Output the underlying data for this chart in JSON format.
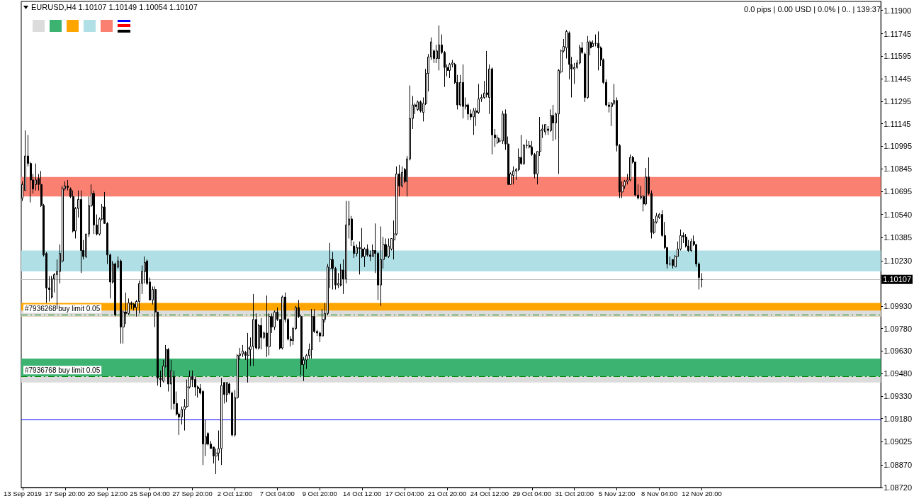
{
  "chart_data": {
    "type": "candlestick",
    "title": "EURUSD,H4 1.10107 1.10149 1.10054 1.10107",
    "annotations": [
      "0.0 pips | 0.00 USD | 0.0% | 0.. | 139:37"
    ],
    "color": "#000000",
    "categories": [
      "13 Sep 2019",
      null,
      null,
      null,
      null,
      null,
      null,
      null,
      null,
      null,
      null,
      null,
      null,
      null,
      null,
      null,
      "17 Sep 20:00",
      null,
      null,
      null,
      null,
      null,
      null,
      null,
      null,
      null,
      null,
      null,
      null,
      null,
      null,
      null,
      "20 Sep 12:00",
      null,
      null,
      null,
      null,
      null,
      null,
      null,
      null,
      null,
      null,
      null,
      null,
      null,
      null,
      null,
      "25 Sep 04:00",
      null,
      null,
      null,
      null,
      null,
      null,
      null,
      null,
      null,
      null,
      null,
      null,
      null,
      null,
      null,
      "27 Sep 20:00",
      null,
      null,
      null,
      null,
      null,
      null,
      null,
      null,
      null,
      null,
      null,
      null,
      null,
      null,
      null,
      "2 Oct 12:00",
      null,
      null,
      null,
      null,
      null,
      null,
      null,
      null,
      null,
      null,
      null,
      null,
      null,
      null,
      null,
      "7 Oct 04:00",
      null,
      null,
      null,
      null,
      null,
      null,
      null,
      null,
      null,
      null,
      null,
      null,
      null,
      null,
      null,
      "9 Oct 20:00",
      null,
      null,
      null,
      null,
      null,
      null,
      null,
      null,
      null,
      null,
      null,
      null,
      null,
      null,
      null,
      "14 Oct 12:00",
      null,
      null,
      null,
      null,
      null,
      null,
      null,
      null,
      null,
      null,
      null,
      null,
      null,
      null,
      null,
      "17 Oct 04:00",
      null,
      null,
      null,
      null,
      null,
      null,
      null,
      null,
      null,
      null,
      null,
      null,
      null,
      null,
      null,
      "21 Oct 20:00",
      null,
      null,
      null,
      null,
      null,
      null,
      null,
      null,
      null,
      null,
      null,
      null,
      null,
      null,
      null,
      "24 Oct 12:00",
      null,
      null,
      null,
      null,
      null,
      null,
      null,
      null,
      null,
      null,
      null,
      null,
      null,
      null,
      null,
      "29 Oct 04:00",
      null,
      null,
      null,
      null,
      null,
      null,
      null,
      null,
      null,
      null,
      null,
      null,
      null,
      null,
      null,
      "31 Oct 20:00",
      null,
      null,
      null,
      null,
      null,
      null,
      null,
      null,
      null,
      null,
      null,
      null,
      null,
      null,
      null,
      "5 Nov 12:00",
      null,
      null,
      null,
      null,
      null,
      null,
      null,
      null,
      null,
      null,
      null,
      null,
      null,
      null,
      null,
      "8 Nov 04:00",
      null,
      null,
      null,
      null,
      null,
      null,
      null,
      null,
      null,
      null,
      null,
      null,
      null,
      null,
      null,
      "12 Nov 20:00",
      null,
      null,
      null,
      null,
      null,
      null,
      null,
      null,
      null,
      null,
      null,
      null,
      null,
      null,
      null,
      null,
      null,
      null,
      null,
      null,
      null,
      null,
      null,
      null,
      null,
      null,
      null,
      null,
      null,
      null,
      null,
      null,
      null,
      null,
      null,
      null,
      null,
      null,
      null,
      null,
      null,
      null,
      null,
      null,
      null,
      null,
      null,
      null,
      null,
      null,
      null,
      null,
      null,
      null,
      null,
      null,
      null,
      null,
      null,
      null,
      null,
      null,
      null,
      null,
      null,
      null,
      null
    ],
    "ohlc": [
      [
        1.1065,
        1.1076,
        1.1063,
        1.1074
      ],
      [
        1.107,
        1.111,
        1.107,
        1.1093
      ],
      [
        1.1093,
        1.1107,
        1.1086,
        1.1088
      ],
      [
        1.1088,
        1.1089,
        1.1062,
        1.1077
      ],
      [
        1.1077,
        1.1081,
        1.1068,
        1.1071
      ],
      [
        1.1074,
        1.1088,
        1.107,
        1.1077
      ],
      [
        1.1078,
        1.1081,
        1.107,
        1.1074
      ],
      [
        1.1074,
        1.1083,
        1.1059,
        1.106
      ],
      [
        1.106,
        1.1061,
        1.1026,
        1.1027
      ],
      [
        1.1028,
        1.1029,
        1.0995,
        1.1005
      ],
      [
        1.1005,
        1.1013,
        1.0996,
        1.1004
      ],
      [
        1.0999,
        1.1013,
        1.0998,
        1.1011
      ],
      [
        1.1011,
        1.1015,
        1.1002,
        1.1014
      ],
      [
        1.1014,
        1.1024,
        1.0991,
        1.1016
      ],
      [
        1.1016,
        1.1034,
        1.1008,
        1.1028
      ],
      [
        1.1023,
        1.1073,
        1.1022,
        1.1071
      ],
      [
        1.1071,
        1.1076,
        1.107,
        1.1073
      ],
      [
        1.1073,
        1.1077,
        1.107,
        1.1072
      ],
      [
        1.1071,
        1.1072,
        1.1065,
        1.1066
      ],
      [
        1.1066,
        1.107,
        1.1042,
        1.1043
      ],
      [
        1.1043,
        1.1059,
        1.1038,
        1.1058
      ],
      [
        1.1058,
        1.107,
        1.1052,
        1.1064
      ],
      [
        1.1064,
        1.107,
        1.1015,
        1.103
      ],
      [
        1.103,
        1.1037,
        1.1024,
        1.1026
      ],
      [
        1.1026,
        1.1041,
        1.1025,
        1.1041
      ],
      [
        1.1041,
        1.1066,
        1.1039,
        1.106
      ],
      [
        1.106,
        1.1074,
        1.1059,
        1.1068
      ],
      [
        1.1068,
        1.107,
        1.1041,
        1.1047
      ],
      [
        1.1047,
        1.1054,
        1.104,
        1.1041
      ],
      [
        1.1041,
        1.1052,
        1.104,
        1.1051
      ],
      [
        1.1051,
        1.1061,
        1.105,
        1.1059
      ],
      [
        1.1059,
        1.1069,
        1.1048,
        1.1048
      ],
      [
        1.1048,
        1.1049,
        1.1021,
        1.1027
      ],
      [
        1.1027,
        1.1028,
        1.0998,
        1.1009
      ],
      [
        1.1009,
        1.1023,
        1.1008,
        1.1021
      ],
      [
        1.1021,
        1.1022,
        1.0986,
        1.0987
      ],
      [
        1.1019,
        1.1026,
        1.1018,
        1.1023
      ],
      [
        1.1023,
        1.1024,
        1.0968,
        1.0979
      ],
      [
        1.0979,
        1.099,
        1.0968,
        1.0989
      ],
      [
        1.0989,
        1.1002,
        1.0981,
        1.0988
      ],
      [
        1.0988,
        1.0998,
        1.0987,
        1.0995
      ],
      [
        1.0995,
        1.0996,
        1.0991,
        1.0994
      ],
      [
        1.0994,
        1.0995,
        1.099,
        1.0992
      ],
      [
        1.0992,
        1.0997,
        1.0986,
        1.0996
      ],
      [
        1.0996,
        1.101,
        1.0988,
        1.1008
      ],
      [
        1.1008,
        1.102,
        1.1001,
        1.1016
      ],
      [
        1.1016,
        1.1026,
        1.1008,
        1.1022
      ],
      [
        1.1023,
        1.1024,
        1.1007,
        1.1008
      ],
      [
        1.1009,
        1.1012,
        1.0997,
        1.0997
      ],
      [
        1.0997,
        1.1006,
        1.0994,
        1.1004
      ],
      [
        1.1004,
        1.1006,
        1.0979,
        1.0989
      ],
      [
        1.0989,
        1.0989,
        1.094,
        1.0945
      ],
      [
        1.0945,
        1.095,
        1.0939,
        1.0944
      ],
      [
        1.0943,
        1.0957,
        1.0942,
        1.0953
      ],
      [
        1.0953,
        1.0967,
        1.0952,
        1.0964
      ],
      [
        1.0964,
        1.0965,
        1.0936,
        1.0941
      ],
      [
        1.0941,
        1.0957,
        1.0924,
        1.095
      ],
      [
        1.0946,
        1.095,
        1.0924,
        1.0928
      ],
      [
        1.0928,
        1.0936,
        1.092,
        1.0921
      ],
      [
        1.0921,
        1.0922,
        1.0907,
        1.0919
      ],
      [
        1.0919,
        1.0926,
        1.0914,
        1.0924
      ],
      [
        1.0924,
        1.0931,
        1.091,
        1.0926
      ],
      [
        1.0926,
        1.0944,
        1.0925,
        1.0939
      ],
      [
        1.0939,
        1.095,
        1.0938,
        1.0946
      ],
      [
        1.0946,
        1.095,
        1.0939,
        1.0944
      ],
      [
        1.0944,
        1.0946,
        1.0933,
        1.0939
      ],
      [
        1.0939,
        1.094,
        1.0932,
        1.0938
      ],
      [
        1.0938,
        1.0941,
        1.0934,
        1.0935
      ],
      [
        1.0936,
        1.0937,
        1.0887,
        1.0901
      ],
      [
        1.0901,
        1.0917,
        1.0893,
        1.0906
      ],
      [
        1.0908,
        1.0909,
        1.09,
        1.0901
      ],
      [
        1.0901,
        1.0903,
        1.0898,
        1.0898
      ],
      [
        1.0899,
        1.0899,
        1.0888,
        1.0893
      ],
      [
        1.0893,
        1.0898,
        1.0881,
        1.0895
      ],
      [
        1.0895,
        1.091,
        1.089,
        1.0898
      ],
      [
        1.0898,
        1.0945,
        1.0887,
        1.094
      ],
      [
        1.0942,
        1.0942,
        1.0928,
        1.0934
      ],
      [
        1.0934,
        1.0942,
        1.0929,
        1.0942
      ],
      [
        1.0941,
        1.0942,
        1.0934,
        1.0935
      ],
      [
        1.0935,
        1.0936,
        1.0906,
        1.0907
      ],
      [
        1.0907,
        1.0937,
        1.0906,
        1.0932
      ],
      [
        1.0932,
        1.0961,
        1.0931,
        1.096
      ],
      [
        1.096,
        1.0965,
        1.0957,
        1.0961
      ],
      [
        1.0961,
        1.0967,
        1.0959,
        1.0963
      ],
      [
        1.0962,
        1.0963,
        1.0957,
        1.096
      ],
      [
        1.096,
        1.0975,
        1.0942,
        1.0965
      ],
      [
        1.0964,
        1.0972,
        1.0953,
        1.0966
      ],
      [
        1.0966,
        1.1001,
        1.0953,
        1.0984
      ],
      [
        1.0984,
        1.0988,
        1.0964,
        1.0965
      ],
      [
        1.0965,
        1.0981,
        1.0964,
        1.098
      ],
      [
        1.098,
        1.0985,
        1.0964,
        1.0972
      ],
      [
        1.0972,
        1.0976,
        1.0971,
        1.0975
      ],
      [
        1.0975,
        1.1,
        1.0959,
        1.0966
      ],
      [
        1.0966,
        1.0988,
        1.096,
        1.0986
      ],
      [
        1.0986,
        1.0988,
        1.0975,
        1.0979
      ],
      [
        1.0979,
        1.099,
        1.0977,
        1.0989
      ],
      [
        1.0989,
        1.0992,
        1.0983,
        1.0984
      ],
      [
        1.0984,
        1.0984,
        1.0964,
        1.0965
      ],
      [
        1.0965,
        1.1,
        1.0964,
        1.0999
      ],
      [
        1.0999,
        1.1002,
        1.0982,
        1.0984
      ],
      [
        1.0984,
        1.0985,
        1.097,
        1.0971
      ],
      [
        1.0971,
        1.0973,
        1.0966,
        1.097
      ],
      [
        1.097,
        1.0979,
        1.0967,
        1.0978
      ],
      [
        1.0978,
        1.0993,
        1.0977,
        1.0992
      ],
      [
        1.0992,
        1.0997,
        1.0985,
        1.0986
      ],
      [
        1.0986,
        1.0987,
        1.0947,
        1.0954
      ],
      [
        1.0954,
        1.0959,
        1.0943,
        1.0957
      ],
      [
        1.0957,
        1.0961,
        1.0951,
        1.096
      ],
      [
        1.096,
        1.0968,
        1.0958,
        1.0964
      ],
      [
        1.0964,
        1.0991,
        1.0958,
        1.0986
      ],
      [
        1.0986,
        1.0991,
        1.0975,
        1.0976
      ],
      [
        1.0976,
        1.0977,
        1.0973,
        1.0975
      ],
      [
        1.0975,
        1.0976,
        1.0969,
        1.0973
      ],
      [
        1.0973,
        1.0991,
        1.0973,
        1.0984
      ],
      [
        1.0984,
        1.0995,
        1.0982,
        1.0988
      ],
      [
        1.0988,
        1.1021,
        1.0987,
        1.1019
      ],
      [
        1.1018,
        1.1035,
        1.1005,
        1.1024
      ],
      [
        1.1024,
        1.1029,
        1.1004,
        1.1018
      ],
      [
        1.1018,
        1.1019,
        1.1004,
        1.1007
      ],
      [
        1.1007,
        1.1015,
        1.1005,
        1.1008
      ],
      [
        1.1007,
        1.1021,
        1.1006,
        1.1017
      ],
      [
        1.1017,
        1.1024,
        1.1001,
        1.1011
      ],
      [
        1.1011,
        1.1063,
        1.1008,
        1.1047
      ],
      [
        1.1047,
        1.1063,
        1.1038,
        1.1051
      ],
      [
        1.1051,
        1.1053,
        1.1033,
        1.1037
      ],
      [
        1.1033,
        1.1036,
        1.1025,
        1.1028
      ],
      [
        1.1028,
        1.1034,
        1.1026,
        1.1032
      ],
      [
        1.1032,
        1.1036,
        1.1014,
        1.1031
      ],
      [
        1.1031,
        1.1045,
        1.1025,
        1.1026
      ],
      [
        1.1026,
        1.1032,
        1.1019,
        1.1031
      ],
      [
        1.1031,
        1.1034,
        1.1026,
        1.1027
      ],
      [
        1.1027,
        1.103,
        1.1023,
        1.1026
      ],
      [
        1.1026,
        1.1034,
        1.1026,
        1.103
      ],
      [
        1.103,
        1.1048,
        1.1015,
        1.1028
      ],
      [
        1.1028,
        1.1029,
        1.0997,
        1.1007
      ],
      [
        1.1007,
        1.1046,
        1.0993,
        1.1024
      ],
      [
        1.1024,
        1.1039,
        1.1018,
        1.1034
      ],
      [
        1.1034,
        1.1038,
        1.1026,
        1.1026
      ],
      [
        1.1026,
        1.1038,
        1.1025,
        1.1033
      ],
      [
        1.1031,
        1.1038,
        1.103,
        1.1038
      ],
      [
        1.1037,
        1.105,
        1.1024,
        1.1041
      ],
      [
        1.1041,
        1.1086,
        1.104,
        1.1081
      ],
      [
        1.1081,
        1.1087,
        1.1066,
        1.1073
      ],
      [
        1.1073,
        1.1086,
        1.1072,
        1.1082
      ],
      [
        1.1084,
        1.1085,
        1.1075,
        1.1076
      ],
      [
        1.1076,
        1.1093,
        1.1066,
        1.1091
      ],
      [
        1.1091,
        1.114,
        1.109,
        1.1118
      ],
      [
        1.1118,
        1.1133,
        1.1111,
        1.1127
      ],
      [
        1.1127,
        1.1128,
        1.1121,
        1.1126
      ],
      [
        1.1124,
        1.113,
        1.1123,
        1.1129
      ],
      [
        1.1129,
        1.113,
        1.1122,
        1.1123
      ],
      [
        1.1122,
        1.1132,
        1.1116,
        1.1128
      ],
      [
        1.1128,
        1.1151,
        1.1127,
        1.1148
      ],
      [
        1.1148,
        1.1161,
        1.1136,
        1.1159
      ],
      [
        1.1159,
        1.1172,
        1.1157,
        1.1169
      ],
      [
        1.1163,
        1.1164,
        1.1155,
        1.1158
      ],
      [
        1.1158,
        1.1167,
        1.1155,
        1.1163
      ],
      [
        1.1158,
        1.118,
        1.115,
        1.1167
      ],
      [
        1.1167,
        1.1174,
        1.1161,
        1.1162
      ],
      [
        1.1162,
        1.1163,
        1.1139,
        1.1152
      ],
      [
        1.1152,
        1.1154,
        1.1146,
        1.115
      ],
      [
        1.115,
        1.1155,
        1.1145,
        1.1154
      ],
      [
        1.1154,
        1.1157,
        1.1152,
        1.1155
      ],
      [
        1.1154,
        1.1155,
        1.1141,
        1.1142
      ],
      [
        1.1142,
        1.1147,
        1.1124,
        1.1127
      ],
      [
        1.1127,
        1.1147,
        1.1126,
        1.1142
      ],
      [
        1.1142,
        1.1154,
        1.1118,
        1.1126
      ],
      [
        1.1126,
        1.1132,
        1.1124,
        1.1127
      ],
      [
        1.1127,
        1.1128,
        1.1117,
        1.1121
      ],
      [
        1.1121,
        1.1124,
        1.1117,
        1.1119
      ],
      [
        1.1119,
        1.1125,
        1.1107,
        1.1123
      ],
      [
        1.1123,
        1.1125,
        1.1113,
        1.1122
      ],
      [
        1.1122,
        1.1141,
        1.1121,
        1.1131
      ],
      [
        1.1131,
        1.1134,
        1.1129,
        1.1132
      ],
      [
        1.1132,
        1.1143,
        1.1131,
        1.1135
      ],
      [
        1.1135,
        1.1163,
        1.1132,
        1.1134
      ],
      [
        1.1132,
        1.1154,
        1.1121,
        1.1151
      ],
      [
        1.1151,
        1.1152,
        1.1094,
        1.1107
      ],
      [
        1.1107,
        1.1111,
        1.1099,
        1.1105
      ],
      [
        1.1102,
        1.1107,
        1.1101,
        1.1105
      ],
      [
        1.1103,
        1.1105,
        1.1102,
        1.1103
      ],
      [
        1.1103,
        1.1123,
        1.1101,
        1.1121
      ],
      [
        1.1121,
        1.1124,
        1.1097,
        1.1101
      ],
      [
        1.1101,
        1.1106,
        1.1074,
        1.1074
      ],
      [
        1.1074,
        1.1082,
        1.1074,
        1.1081
      ],
      [
        1.108,
        1.1086,
        1.1074,
        1.1083
      ],
      [
        1.1083,
        1.1085,
        1.1077,
        1.1084
      ],
      [
        1.1084,
        1.1098,
        1.1083,
        1.1092
      ],
      [
        1.1092,
        1.1107,
        1.1087,
        1.1088
      ],
      [
        1.1088,
        1.1101,
        1.1087,
        1.11
      ],
      [
        1.11,
        1.1104,
        1.1098,
        1.11
      ],
      [
        1.11,
        1.1103,
        1.1098,
        1.1099
      ],
      [
        1.1099,
        1.1103,
        1.1093,
        1.1094
      ],
      [
        1.1094,
        1.1095,
        1.1078,
        1.1081
      ],
      [
        1.1081,
        1.1096,
        1.1074,
        1.1096
      ],
      [
        1.1096,
        1.1119,
        1.1093,
        1.111
      ],
      [
        1.111,
        1.1114,
        1.1105,
        1.1111
      ],
      [
        1.1109,
        1.1114,
        1.1107,
        1.1114
      ],
      [
        1.1111,
        1.1113,
        1.1107,
        1.111
      ],
      [
        1.111,
        1.1124,
        1.1109,
        1.112
      ],
      [
        1.112,
        1.1127,
        1.1103,
        1.1115
      ],
      [
        1.1115,
        1.1122,
        1.1104,
        1.1121
      ],
      [
        1.1121,
        1.1151,
        1.1081,
        1.115
      ],
      [
        1.1149,
        1.1164,
        1.1148,
        1.1163
      ],
      [
        1.1163,
        1.1171,
        1.1162,
        1.1166
      ],
      [
        1.1165,
        1.1177,
        1.1158,
        1.1176
      ],
      [
        1.1175,
        1.1176,
        1.1144,
        1.1154
      ],
      [
        1.1154,
        1.1159,
        1.1132,
        1.1151
      ],
      [
        1.1151,
        1.1155,
        1.1141,
        1.1152
      ],
      [
        1.1152,
        1.1157,
        1.1151,
        1.1155
      ],
      [
        1.1155,
        1.1167,
        1.1154,
        1.1165
      ],
      [
        1.1165,
        1.1169,
        1.1161,
        1.1162
      ],
      [
        1.1161,
        1.1162,
        1.1129,
        1.1132
      ],
      [
        1.1132,
        1.1173,
        1.1131,
        1.1169
      ],
      [
        1.1169,
        1.117,
        1.116,
        1.1165
      ],
      [
        1.1166,
        1.117,
        1.1166,
        1.1168
      ],
      [
        1.1168,
        1.1174,
        1.1166,
        1.1168
      ],
      [
        1.1168,
        1.1176,
        1.115,
        1.1165
      ],
      [
        1.1165,
        1.1166,
        1.1153,
        1.1157
      ],
      [
        1.1157,
        1.1158,
        1.1141,
        1.1142
      ],
      [
        1.1142,
        1.1144,
        1.1126,
        1.1127
      ],
      [
        1.1127,
        1.1129,
        1.1122,
        1.1126
      ],
      [
        1.1126,
        1.1129,
        1.1113,
        1.1128
      ],
      [
        1.1128,
        1.1141,
        1.1127,
        1.113
      ],
      [
        1.113,
        1.1132,
        1.1096,
        1.11
      ],
      [
        1.11,
        1.1101,
        1.1065,
        1.1069
      ],
      [
        1.1069,
        1.1076,
        1.1065,
        1.1073
      ],
      [
        1.1073,
        1.1077,
        1.1071,
        1.1076
      ],
      [
        1.1076,
        1.1081,
        1.1074,
        1.1077
      ],
      [
        1.1077,
        1.1094,
        1.1076,
        1.1092
      ],
      [
        1.1092,
        1.1093,
        1.1088,
        1.1089
      ],
      [
        1.1089,
        1.1089,
        1.1066,
        1.1067
      ],
      [
        1.1067,
        1.1074,
        1.1064,
        1.1065
      ],
      [
        1.1065,
        1.1073,
        1.1064,
        1.1066
      ],
      [
        1.1066,
        1.1067,
        1.1056,
        1.1061
      ],
      [
        1.1061,
        1.1085,
        1.106,
        1.1079
      ],
      [
        1.1079,
        1.1092,
        1.1067,
        1.1068
      ],
      [
        1.1068,
        1.107,
        1.1038,
        1.1042
      ],
      [
        1.1042,
        1.1051,
        1.1041,
        1.1049
      ],
      [
        1.1049,
        1.1055,
        1.1048,
        1.1053
      ],
      [
        1.1052,
        1.1055,
        1.1051,
        1.1054
      ],
      [
        1.1054,
        1.1057,
        1.1039,
        1.104
      ],
      [
        1.104,
        1.1049,
        1.1031,
        1.1032
      ],
      [
        1.1032,
        1.1032,
        1.1018,
        1.1021
      ],
      [
        1.1021,
        1.1026,
        1.102,
        1.1021
      ],
      [
        1.1024,
        1.1024,
        1.1018,
        1.102
      ],
      [
        1.1019,
        1.1027,
        1.1019,
        1.1026
      ],
      [
        1.1026,
        1.1036,
        1.1026,
        1.1031
      ],
      [
        1.1031,
        1.1044,
        1.103,
        1.104
      ],
      [
        1.104,
        1.1042,
        1.1035,
        1.1039
      ],
      [
        1.1039,
        1.1041,
        1.1032,
        1.1033
      ],
      [
        1.1033,
        1.1037,
        1.1029,
        1.103
      ],
      [
        1.103,
        1.1038,
        1.1029,
        1.1036
      ],
      [
        1.1036,
        1.104,
        1.1033,
        1.1034
      ],
      [
        1.1034,
        1.1034,
        1.1019,
        1.1021
      ],
      [
        1.1021,
        1.1022,
        1.1004,
        1.1012
      ],
      [
        1.10107,
        1.10149,
        1.10054,
        1.10107
      ],
      null,
      null,
      null,
      null,
      null,
      null,
      null,
      null,
      null,
      null,
      null,
      null,
      null,
      null,
      null,
      null,
      null,
      null,
      null,
      null,
      null,
      null,
      null,
      null,
      null,
      null,
      null,
      null,
      null,
      null,
      null,
      null,
      null,
      null,
      null,
      null,
      null,
      null,
      null,
      null,
      null,
      null,
      null,
      null,
      null,
      null,
      null,
      null,
      null,
      null,
      null,
      null,
      null,
      null,
      null,
      null,
      null,
      null,
      null,
      null,
      null,
      null,
      null,
      null,
      null,
      null,
      null
    ],
    "ylim": [
      1.0872,
      1.1196
    ],
    "yticks": [
      {
        "value": 1.119,
        "label": "1.11900"
      },
      {
        "value": 1.11745,
        "label": "1.11745"
      },
      {
        "value": 1.11595,
        "label": "1.11595"
      },
      {
        "value": 1.11445,
        "label": "1.11445"
      },
      {
        "value": 1.11295,
        "label": "1.11295"
      },
      {
        "value": 1.11145,
        "label": "1.11145"
      },
      {
        "value": 1.10995,
        "label": "1.10995"
      },
      {
        "value": 1.10845,
        "label": "1.10845"
      },
      {
        "value": 1.10695,
        "label": "1.10695"
      },
      {
        "value": 1.1054,
        "label": "1.10540"
      },
      {
        "value": 1.10385,
        "label": "1.10385"
      },
      {
        "value": 1.1023,
        "label": "1.10230"
      },
      {
        "value": 1.0993,
        "label": "1.09930"
      },
      {
        "value": 1.0978,
        "label": "1.09780"
      },
      {
        "value": 1.0963,
        "label": "1.09630"
      },
      {
        "value": 1.0948,
        "label": "1.09480"
      },
      {
        "value": 1.0933,
        "label": "1.09330"
      },
      {
        "value": 1.0918,
        "label": "1.09180"
      },
      {
        "value": 1.09025,
        "label": "1.09025"
      },
      {
        "value": 1.0887,
        "label": "1.08870"
      },
      {
        "value": 1.0872,
        "label": "1.08720"
      }
    ],
    "bands": [
      {
        "axis": "y",
        "from": 1.0986,
        "to": 1.0995,
        "color": "#ffa500"
      },
      {
        "axis": "y",
        "from": 1.0946,
        "to": 1.0958,
        "color": "#3cb371"
      },
      {
        "axis": "y",
        "from": 1.1016,
        "to": 1.103,
        "color": "#b0e0e6"
      },
      {
        "axis": "y",
        "from": 1.1066,
        "to": 1.1079,
        "color": "#fa8072"
      },
      {
        "axis": "y",
        "from": 1.0942,
        "to": 1.0946,
        "color": "#dcdcdc"
      },
      {
        "axis": "y",
        "from": 1.0986,
        "to": 1.099,
        "color": "#dcdcdc"
      }
    ],
    "ref_lines": [
      {
        "axis": "y",
        "value": 1.10107,
        "label": "1.10107",
        "color": "#c0c0c0"
      },
      {
        "axis": "y",
        "value": 1.0987,
        "label": "#7936268 buy limit 0.05",
        "color": "#008000",
        "line_style": "dashed"
      },
      {
        "axis": "y",
        "value": 1.0946,
        "label": "#7936768 buy limit 0.05",
        "color": "#008000",
        "line_style": "dashed"
      },
      {
        "axis": "y",
        "value": 1.0917,
        "color": "#0000ff"
      }
    ]
  }
}
